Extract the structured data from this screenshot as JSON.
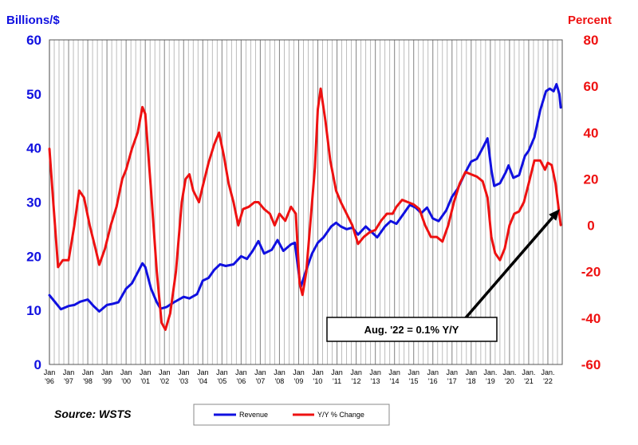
{
  "chart_data": {
    "type": "line",
    "left_axis_label": "Billions/$",
    "right_axis_label": "Percent",
    "left_ylim": [
      0,
      60
    ],
    "right_ylim": [
      -60,
      80
    ],
    "left_ticks": [
      0,
      10,
      20,
      30,
      40,
      50,
      60
    ],
    "right_ticks": [
      -60,
      -40,
      -20,
      0,
      20,
      40,
      60,
      80
    ],
    "x_range": [
      1996.0,
      2022.75
    ],
    "grid": "vertical",
    "x_tick_labels": [
      {
        "x": 1996,
        "top": "Jan",
        "bottom": "'96"
      },
      {
        "x": 1997,
        "top": "Jan",
        "bottom": "'97"
      },
      {
        "x": 1998,
        "top": "Jan",
        "bottom": "'98"
      },
      {
        "x": 1999,
        "top": "Jan",
        "bottom": "'99"
      },
      {
        "x": 2000,
        "top": "Jan",
        "bottom": "'00"
      },
      {
        "x": 2001,
        "top": "Jan",
        "bottom": "'01"
      },
      {
        "x": 2002,
        "top": "Jan",
        "bottom": "'02"
      },
      {
        "x": 2003,
        "top": "Jan",
        "bottom": "'03"
      },
      {
        "x": 2004,
        "top": "Jan",
        "bottom": "'04"
      },
      {
        "x": 2005,
        "top": "Jan",
        "bottom": "'05"
      },
      {
        "x": 2006,
        "top": "Jan",
        "bottom": "'06"
      },
      {
        "x": 2007,
        "top": "Jan",
        "bottom": "'07"
      },
      {
        "x": 2008,
        "top": "Jan",
        "bottom": "'08"
      },
      {
        "x": 2009,
        "top": "Jan",
        "bottom": "'09"
      },
      {
        "x": 2010,
        "top": "Jan",
        "bottom": "'10"
      },
      {
        "x": 2011,
        "top": "Jan",
        "bottom": "'11"
      },
      {
        "x": 2012,
        "top": "Jan",
        "bottom": "'12"
      },
      {
        "x": 2013,
        "top": "Jan",
        "bottom": "'13"
      },
      {
        "x": 2014,
        "top": "Jan",
        "bottom": "'14"
      },
      {
        "x": 2015,
        "top": "Jan",
        "bottom": "'15"
      },
      {
        "x": 2016,
        "top": "Jan",
        "bottom": "'16"
      },
      {
        "x": 2017,
        "top": "Jan",
        "bottom": "'17"
      },
      {
        "x": 2018,
        "top": "Jan",
        "bottom": "'18"
      },
      {
        "x": 2019,
        "top": "Jan.",
        "bottom": "'19"
      },
      {
        "x": 2020,
        "top": "Jan.",
        "bottom": "'20"
      },
      {
        "x": 2021,
        "top": "Jan.",
        "bottom": "'21"
      },
      {
        "x": 2022,
        "top": "Jan.",
        "bottom": "'22"
      }
    ],
    "series": [
      {
        "name": "Revenue",
        "axis": "left",
        "color": "#1010e0",
        "points": [
          [
            1996.0,
            12.8
          ],
          [
            1996.3,
            11.5
          ],
          [
            1996.6,
            10.2
          ],
          [
            1997.0,
            10.8
          ],
          [
            1997.3,
            11.0
          ],
          [
            1997.6,
            11.6
          ],
          [
            1998.0,
            12.0
          ],
          [
            1998.3,
            10.8
          ],
          [
            1998.6,
            9.8
          ],
          [
            1999.0,
            11.0
          ],
          [
            1999.3,
            11.2
          ],
          [
            1999.6,
            11.5
          ],
          [
            2000.0,
            14.0
          ],
          [
            2000.3,
            15.0
          ],
          [
            2000.6,
            17.0
          ],
          [
            2000.85,
            18.7
          ],
          [
            2001.0,
            18.0
          ],
          [
            2001.3,
            14.0
          ],
          [
            2001.6,
            11.5
          ],
          [
            2001.8,
            10.3
          ],
          [
            2002.1,
            10.6
          ],
          [
            2002.5,
            11.5
          ],
          [
            2003.0,
            12.5
          ],
          [
            2003.3,
            12.2
          ],
          [
            2003.7,
            13.0
          ],
          [
            2004.0,
            15.5
          ],
          [
            2004.3,
            16.0
          ],
          [
            2004.6,
            17.5
          ],
          [
            2004.9,
            18.5
          ],
          [
            2005.2,
            18.2
          ],
          [
            2005.6,
            18.5
          ],
          [
            2006.0,
            20.0
          ],
          [
            2006.3,
            19.5
          ],
          [
            2006.6,
            21.0
          ],
          [
            2006.9,
            22.8
          ],
          [
            2007.2,
            20.5
          ],
          [
            2007.6,
            21.2
          ],
          [
            2007.9,
            23.0
          ],
          [
            2008.2,
            21.0
          ],
          [
            2008.6,
            22.2
          ],
          [
            2008.8,
            22.5
          ],
          [
            2009.0,
            17.0
          ],
          [
            2009.1,
            14.2
          ],
          [
            2009.4,
            17.5
          ],
          [
            2009.7,
            20.5
          ],
          [
            2010.0,
            22.5
          ],
          [
            2010.3,
            23.5
          ],
          [
            2010.7,
            25.5
          ],
          [
            2010.95,
            26.2
          ],
          [
            2011.2,
            25.5
          ],
          [
            2011.5,
            25.0
          ],
          [
            2011.8,
            25.3
          ],
          [
            2012.1,
            24.0
          ],
          [
            2012.5,
            25.5
          ],
          [
            2012.8,
            24.5
          ],
          [
            2013.1,
            23.5
          ],
          [
            2013.5,
            25.5
          ],
          [
            2013.8,
            26.5
          ],
          [
            2014.1,
            26.0
          ],
          [
            2014.4,
            27.5
          ],
          [
            2014.8,
            29.5
          ],
          [
            2015.1,
            29.0
          ],
          [
            2015.4,
            28.0
          ],
          [
            2015.7,
            29.0
          ],
          [
            2016.0,
            27.0
          ],
          [
            2016.3,
            26.5
          ],
          [
            2016.7,
            28.5
          ],
          [
            2017.0,
            31.0
          ],
          [
            2017.3,
            32.5
          ],
          [
            2017.7,
            35.5
          ],
          [
            2018.0,
            37.5
          ],
          [
            2018.3,
            38.0
          ],
          [
            2018.6,
            40.0
          ],
          [
            2018.85,
            41.8
          ],
          [
            2019.05,
            36.0
          ],
          [
            2019.2,
            33.0
          ],
          [
            2019.5,
            33.5
          ],
          [
            2019.8,
            35.5
          ],
          [
            2019.95,
            36.8
          ],
          [
            2020.2,
            34.5
          ],
          [
            2020.5,
            35.0
          ],
          [
            2020.8,
            38.5
          ],
          [
            2021.0,
            39.5
          ],
          [
            2021.3,
            42.0
          ],
          [
            2021.6,
            47.0
          ],
          [
            2021.9,
            50.5
          ],
          [
            2022.1,
            51.0
          ],
          [
            2022.3,
            50.5
          ],
          [
            2022.45,
            51.8
          ],
          [
            2022.6,
            50.0
          ],
          [
            2022.67,
            47.5
          ]
        ]
      },
      {
        "name": "Y/Y % Change",
        "axis": "right",
        "color": "#ee1111",
        "points": [
          [
            1996.0,
            33
          ],
          [
            1996.2,
            10
          ],
          [
            1996.45,
            -18
          ],
          [
            1996.7,
            -15
          ],
          [
            1997.0,
            -15
          ],
          [
            1997.3,
            0
          ],
          [
            1997.55,
            15
          ],
          [
            1997.8,
            12
          ],
          [
            1998.1,
            0
          ],
          [
            1998.4,
            -10
          ],
          [
            1998.6,
            -17
          ],
          [
            1998.9,
            -10
          ],
          [
            1999.2,
            0
          ],
          [
            1999.5,
            8
          ],
          [
            1999.8,
            20
          ],
          [
            2000.0,
            24
          ],
          [
            2000.3,
            33
          ],
          [
            2000.6,
            40
          ],
          [
            2000.85,
            51
          ],
          [
            2001.0,
            48
          ],
          [
            2001.3,
            15
          ],
          [
            2001.6,
            -20
          ],
          [
            2001.85,
            -42
          ],
          [
            2002.05,
            -45
          ],
          [
            2002.3,
            -38
          ],
          [
            2002.6,
            -20
          ],
          [
            2002.9,
            10
          ],
          [
            2003.1,
            20
          ],
          [
            2003.3,
            22
          ],
          [
            2003.5,
            15
          ],
          [
            2003.8,
            10
          ],
          [
            2004.0,
            17
          ],
          [
            2004.3,
            27
          ],
          [
            2004.6,
            35
          ],
          [
            2004.85,
            40
          ],
          [
            2005.1,
            30
          ],
          [
            2005.35,
            18
          ],
          [
            2005.6,
            10
          ],
          [
            2005.85,
            0
          ],
          [
            2006.1,
            7
          ],
          [
            2006.4,
            8
          ],
          [
            2006.7,
            10
          ],
          [
            2006.9,
            10
          ],
          [
            2007.2,
            7
          ],
          [
            2007.5,
            5
          ],
          [
            2007.75,
            0
          ],
          [
            2008.0,
            5
          ],
          [
            2008.3,
            2
          ],
          [
            2008.6,
            8
          ],
          [
            2008.85,
            5
          ],
          [
            2009.05,
            -25
          ],
          [
            2009.2,
            -30
          ],
          [
            2009.4,
            -20
          ],
          [
            2009.6,
            0
          ],
          [
            2009.85,
            25
          ],
          [
            2010.0,
            50
          ],
          [
            2010.15,
            59
          ],
          [
            2010.4,
            45
          ],
          [
            2010.65,
            28
          ],
          [
            2010.95,
            15
          ],
          [
            2011.2,
            10
          ],
          [
            2011.5,
            5
          ],
          [
            2011.8,
            0
          ],
          [
            2012.1,
            -8
          ],
          [
            2012.4,
            -5
          ],
          [
            2012.7,
            -3
          ],
          [
            2013.0,
            -2
          ],
          [
            2013.3,
            2
          ],
          [
            2013.6,
            5
          ],
          [
            2013.9,
            5
          ],
          [
            2014.1,
            8
          ],
          [
            2014.4,
            11
          ],
          [
            2014.7,
            10
          ],
          [
            2015.0,
            9
          ],
          [
            2015.3,
            7
          ],
          [
            2015.6,
            0
          ],
          [
            2015.9,
            -5
          ],
          [
            2016.2,
            -5
          ],
          [
            2016.5,
            -7
          ],
          [
            2016.8,
            0
          ],
          [
            2017.1,
            10
          ],
          [
            2017.4,
            18
          ],
          [
            2017.7,
            23
          ],
          [
            2018.0,
            22
          ],
          [
            2018.3,
            21
          ],
          [
            2018.6,
            19
          ],
          [
            2018.85,
            12
          ],
          [
            2019.05,
            -5
          ],
          [
            2019.25,
            -12
          ],
          [
            2019.5,
            -15
          ],
          [
            2019.75,
            -10
          ],
          [
            2020.0,
            0
          ],
          [
            2020.25,
            5
          ],
          [
            2020.5,
            6
          ],
          [
            2020.75,
            10
          ],
          [
            2021.0,
            18
          ],
          [
            2021.3,
            28
          ],
          [
            2021.6,
            28
          ],
          [
            2021.85,
            24
          ],
          [
            2022.0,
            27
          ],
          [
            2022.2,
            26
          ],
          [
            2022.4,
            18
          ],
          [
            2022.55,
            8
          ],
          [
            2022.67,
            0.1
          ]
        ]
      }
    ],
    "annotation": {
      "text": "Aug. '22 = 0.1% Y/Y",
      "arrow_tip": [
        2022.62,
        7
      ],
      "box_anchor": [
        2017.7,
        -40
      ]
    },
    "legend": {
      "placement": "bottom-center",
      "items": [
        {
          "label": "Revenue",
          "color": "#1010e0"
        },
        {
          "label": "Y/Y % Change",
          "color": "#ee1111"
        }
      ]
    },
    "source": "Source: WSTS"
  }
}
